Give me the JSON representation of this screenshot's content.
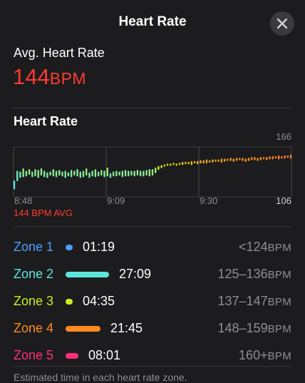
{
  "header": {
    "title": "Heart Rate",
    "close_icon": "close-icon"
  },
  "summary": {
    "label": "Avg. Heart Rate",
    "value": "144",
    "unit": "BPM"
  },
  "chart_section": {
    "title": "Heart Rate"
  },
  "chart_data": {
    "type": "bar",
    "title": "",
    "y_max_label": "166",
    "y_min_label": "106",
    "ylim": [
      106,
      166
    ],
    "x_tick_labels": [
      "8:48",
      "9:09",
      "9:30"
    ],
    "avg_label": "144 BPM AVG",
    "grid": true,
    "values": [
      [
        110,
        121
      ],
      [
        120,
        133
      ],
      [
        124,
        132
      ],
      [
        125,
        136
      ],
      [
        126,
        133
      ],
      [
        128,
        135
      ],
      [
        125,
        132
      ],
      [
        126,
        135
      ],
      [
        124,
        134
      ],
      [
        127,
        136
      ],
      [
        125,
        133
      ],
      [
        124,
        131
      ],
      [
        127,
        132
      ],
      [
        126,
        135
      ],
      [
        125,
        133
      ],
      [
        127,
        134
      ],
      [
        126,
        132
      ],
      [
        124,
        133
      ],
      [
        126,
        131
      ],
      [
        125,
        134
      ],
      [
        127,
        133
      ],
      [
        126,
        135
      ],
      [
        124,
        132
      ],
      [
        125,
        133
      ],
      [
        127,
        136
      ],
      [
        124,
        131
      ],
      [
        126,
        133
      ],
      [
        125,
        135
      ],
      [
        126,
        132
      ],
      [
        127,
        134
      ],
      [
        125,
        133
      ],
      [
        126,
        137
      ],
      [
        124,
        130
      ],
      [
        126,
        132
      ],
      [
        126,
        133
      ],
      [
        127,
        132
      ],
      [
        125,
        133
      ],
      [
        126,
        134
      ],
      [
        126,
        133
      ],
      [
        127,
        133
      ],
      [
        126,
        133
      ],
      [
        127,
        134
      ],
      [
        126,
        133
      ],
      [
        126,
        133
      ],
      [
        127,
        134
      ],
      [
        126,
        135
      ],
      [
        127,
        135
      ],
      [
        130,
        137
      ],
      [
        134,
        139
      ],
      [
        136,
        140
      ],
      [
        138,
        141
      ],
      [
        139,
        142
      ],
      [
        139,
        142
      ],
      [
        140,
        143
      ],
      [
        139,
        142
      ],
      [
        140,
        143
      ],
      [
        140,
        144
      ],
      [
        141,
        144
      ],
      [
        141,
        144
      ],
      [
        140,
        145
      ],
      [
        142,
        145
      ],
      [
        141,
        145
      ],
      [
        142,
        146
      ],
      [
        142,
        146
      ],
      [
        142,
        147
      ],
      [
        143,
        146
      ],
      [
        143,
        147
      ],
      [
        144,
        147
      ],
      [
        144,
        147
      ],
      [
        143,
        148
      ],
      [
        144,
        148
      ],
      [
        145,
        148
      ],
      [
        145,
        149
      ],
      [
        144,
        148
      ],
      [
        145,
        149
      ],
      [
        146,
        149
      ],
      [
        145,
        149
      ],
      [
        144,
        148
      ],
      [
        145,
        149
      ],
      [
        146,
        150
      ],
      [
        146,
        150
      ],
      [
        145,
        149
      ],
      [
        146,
        150
      ],
      [
        147,
        150
      ],
      [
        146,
        150
      ],
      [
        147,
        151
      ],
      [
        147,
        151
      ],
      [
        148,
        151
      ],
      [
        147,
        152
      ],
      [
        148,
        151
      ],
      [
        148,
        152
      ],
      [
        149,
        152
      ],
      [
        148,
        153
      ]
    ]
  },
  "zones": [
    {
      "name": "Zone 1",
      "time": "01:19",
      "range": "<124",
      "unit": "BPM",
      "color": "#4a9fff",
      "fraction": 0.02
    },
    {
      "name": "Zone 2",
      "time": "27:09",
      "range": "125–136",
      "unit": "BPM",
      "color": "#5ee6dc",
      "fraction": 0.48
    },
    {
      "name": "Zone 3",
      "time": "04:35",
      "range": "137–147",
      "unit": "BPM",
      "color": "#c8f020",
      "fraction": 0.08
    },
    {
      "name": "Zone 4",
      "time": "21:45",
      "range": "148–159",
      "unit": "BPM",
      "color": "#ff8a1e",
      "fraction": 0.38
    },
    {
      "name": "Zone 5",
      "time": "08:01",
      "range": "160+",
      "unit": "BPM",
      "color": "#ff2d7a",
      "fraction": 0.14
    }
  ],
  "footnote": "Estimated time in each heart rate zone."
}
